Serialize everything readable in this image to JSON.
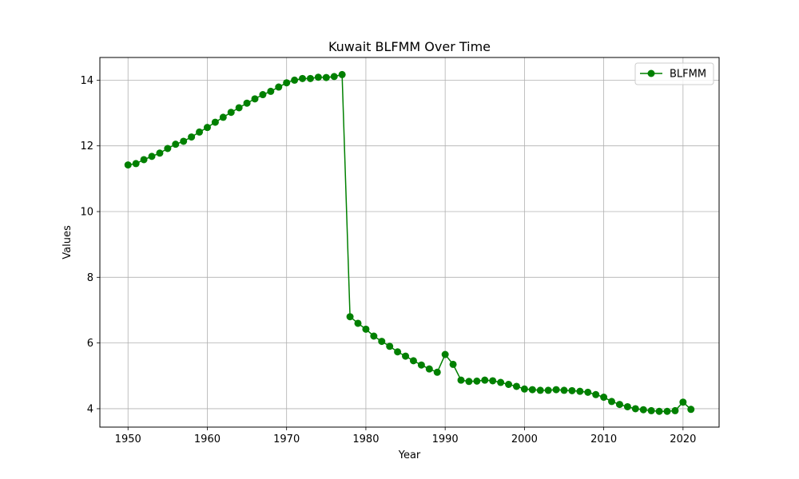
{
  "chart_data": {
    "type": "line",
    "title": "Kuwait BLFMM Over Time",
    "xlabel": "Year",
    "ylabel": "Values",
    "xlim": [
      1946.45,
      2024.55
    ],
    "ylim": [
      3.44,
      14.69
    ],
    "xticks": [
      1950,
      1960,
      1970,
      1980,
      1990,
      2000,
      2010,
      2020
    ],
    "yticks": [
      4,
      6,
      8,
      10,
      12,
      14
    ],
    "grid": true,
    "legend": {
      "position": "upper right"
    },
    "series": [
      {
        "name": "BLFMM",
        "color": "#008000",
        "marker": "circle",
        "x": [
          1950,
          1951,
          1952,
          1953,
          1954,
          1955,
          1956,
          1957,
          1958,
          1959,
          1960,
          1961,
          1962,
          1963,
          1964,
          1965,
          1966,
          1967,
          1968,
          1969,
          1970,
          1971,
          1972,
          1973,
          1974,
          1975,
          1976,
          1977,
          1978,
          1979,
          1980,
          1981,
          1982,
          1983,
          1984,
          1985,
          1986,
          1987,
          1988,
          1989,
          1990,
          1991,
          1992,
          1993,
          1994,
          1995,
          1996,
          1997,
          1998,
          1999,
          2000,
          2001,
          2002,
          2003,
          2004,
          2005,
          2006,
          2007,
          2008,
          2009,
          2010,
          2011,
          2012,
          2013,
          2014,
          2015,
          2016,
          2017,
          2018,
          2019,
          2020,
          2021
        ],
        "y": [
          11.42,
          11.46,
          11.58,
          11.68,
          11.78,
          11.92,
          12.05,
          12.14,
          12.27,
          12.42,
          12.56,
          12.72,
          12.87,
          13.02,
          13.16,
          13.3,
          13.43,
          13.56,
          13.66,
          13.79,
          13.92,
          14.0,
          14.05,
          14.05,
          14.09,
          14.08,
          14.11,
          14.17,
          6.8,
          6.6,
          6.42,
          6.21,
          6.05,
          5.9,
          5.73,
          5.6,
          5.46,
          5.33,
          5.21,
          5.11,
          5.65,
          5.35,
          4.87,
          4.83,
          4.84,
          4.87,
          4.85,
          4.8,
          4.74,
          4.68,
          4.6,
          4.58,
          4.56,
          4.56,
          4.58,
          4.56,
          4.55,
          4.53,
          4.5,
          4.43,
          4.35,
          4.22,
          4.13,
          4.06,
          4.0,
          3.97,
          3.94,
          3.92,
          3.92,
          3.94,
          4.2,
          3.98
        ]
      }
    ]
  }
}
